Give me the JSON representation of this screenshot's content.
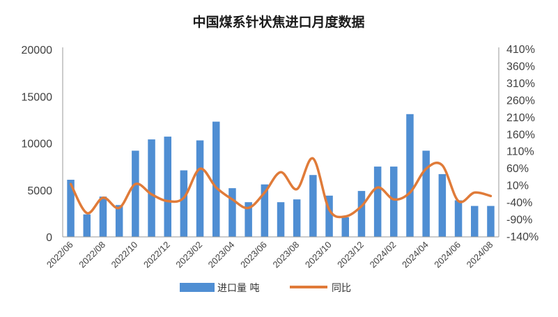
{
  "chart_data": {
    "type": "bar",
    "title": "中国煤系针状焦进口月度数据",
    "xlabel": "",
    "ylabel": "",
    "y_left_ticks": [
      "20000",
      "15000",
      "10000",
      "5000",
      "0"
    ],
    "y_right_ticks": [
      "410%",
      "360%",
      "310%",
      "260%",
      "210%",
      "160%",
      "110%",
      "60%",
      "10%",
      "-40%",
      "-90%",
      "-140%"
    ],
    "ylim_left": [
      0,
      20000
    ],
    "ylim_right": [
      -140,
      410
    ],
    "x_tick_labels": [
      "2022/06",
      "2022/08",
      "2022/10",
      "2022/12",
      "2023/02",
      "2023/04",
      "2023/06",
      "2023/08",
      "2023/10",
      "2023/12",
      "2024/02",
      "2024/04",
      "2024/06",
      "2024/08"
    ],
    "categories": [
      "2022/06",
      "2022/07",
      "2022/08",
      "2022/09",
      "2022/10",
      "2022/11",
      "2022/12",
      "2023/01",
      "2023/02",
      "2023/03",
      "2023/04",
      "2023/05",
      "2023/06",
      "2023/07",
      "2023/08",
      "2023/09",
      "2023/10",
      "2023/11",
      "2023/12",
      "2024/01",
      "2024/02",
      "2024/03",
      "2024/04",
      "2024/05",
      "2024/06",
      "2024/07",
      "2024/08"
    ],
    "series": [
      {
        "name": "进口量 吨",
        "kind": "bar",
        "axis": "left",
        "color": "#4f8ed3",
        "values": [
          6100,
          2400,
          4300,
          3400,
          9200,
          10400,
          10700,
          7100,
          10300,
          12300,
          5200,
          3700,
          5600,
          3700,
          4000,
          6600,
          4400,
          2100,
          4900,
          7500,
          7500,
          13100,
          9200,
          6700,
          3900,
          3300,
          3300
        ]
      },
      {
        "name": "同比",
        "kind": "line",
        "axis": "right",
        "color": "#e07b39",
        "values": [
          15,
          -70,
          -25,
          -55,
          15,
          -15,
          -35,
          -25,
          60,
          5,
          -30,
          -55,
          -10,
          50,
          0,
          90,
          -60,
          -80,
          -50,
          5,
          -30,
          -10,
          60,
          70,
          -35,
          -10,
          -20
        ]
      }
    ],
    "legend_position": "bottom",
    "grid": false
  }
}
